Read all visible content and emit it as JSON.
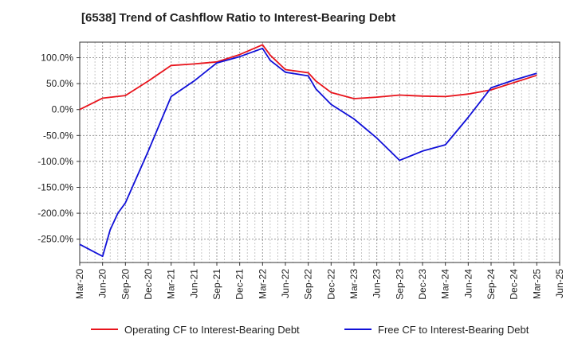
{
  "chart_data": {
    "type": "line",
    "title": "[6538]  Trend of Cashflow Ratio to Interest-Bearing Debt",
    "xlabel": "",
    "ylabel": "",
    "x_ticks": [
      "Mar-20",
      "Jun-20",
      "Sep-20",
      "Dec-20",
      "Mar-21",
      "Jun-21",
      "Sep-21",
      "Dec-21",
      "Mar-22",
      "Jun-22",
      "Sep-22",
      "Dec-22",
      "Mar-23",
      "Jun-23",
      "Sep-23",
      "Dec-23",
      "Mar-24",
      "Jun-24",
      "Sep-24",
      "Dec-24",
      "Mar-25",
      "Jun-25"
    ],
    "y_ticks": [
      "100.0%",
      "50.0%",
      "0.0%",
      "-50.0%",
      "-100.0%",
      "-150.0%",
      "-200.0%",
      "-250.0%"
    ],
    "y_tick_values": [
      100,
      50,
      0,
      -50,
      -100,
      -150,
      -200,
      -250
    ],
    "ylim": [
      -295,
      130
    ],
    "xlim": [
      "Mar-20",
      "Jun-25"
    ],
    "grid": true,
    "legend_position": "bottom",
    "series": [
      {
        "name": "Operating CF to Interest-Bearing Debt",
        "color": "#e8141c",
        "points": [
          [
            "Mar-20",
            0
          ],
          [
            "Jun-20",
            22
          ],
          [
            "Sep-20",
            27
          ],
          [
            "Dec-20",
            55
          ],
          [
            "Mar-21",
            85
          ],
          [
            "Jun-21",
            88
          ],
          [
            "Sep-21",
            92
          ],
          [
            "Dec-21",
            106
          ],
          [
            "Mar-22",
            125
          ],
          [
            "Apr-22",
            105
          ],
          [
            "Jun-22",
            77
          ],
          [
            "Sep-22",
            71
          ],
          [
            "Oct-22",
            55
          ],
          [
            "Dec-22",
            33
          ],
          [
            "Mar-23",
            21
          ],
          [
            "Jun-23",
            24
          ],
          [
            "Sep-23",
            28
          ],
          [
            "Dec-23",
            26
          ],
          [
            "Mar-24",
            25
          ],
          [
            "Jun-24",
            30
          ],
          [
            "Sep-24",
            38
          ],
          [
            "Dec-24",
            52
          ],
          [
            "Mar-25",
            66
          ]
        ]
      },
      {
        "name": "Free CF to Interest-Bearing Debt",
        "color": "#1010d8",
        "points": [
          [
            "Mar-20",
            -260
          ],
          [
            "Jun-20",
            -283
          ],
          [
            "Jul-20",
            -232
          ],
          [
            "Aug-20",
            -200
          ],
          [
            "Sep-20",
            -180
          ],
          [
            "Dec-20",
            -80
          ],
          [
            "Mar-21",
            25
          ],
          [
            "Jun-21",
            55
          ],
          [
            "Sep-21",
            90
          ],
          [
            "Dec-21",
            102
          ],
          [
            "Mar-22",
            118
          ],
          [
            "Apr-22",
            95
          ],
          [
            "Jun-22",
            72
          ],
          [
            "Sep-22",
            65
          ],
          [
            "Oct-22",
            40
          ],
          [
            "Dec-22",
            10
          ],
          [
            "Mar-23",
            -18
          ],
          [
            "Jun-23",
            -55
          ],
          [
            "Sep-23",
            -98
          ],
          [
            "Dec-23",
            -80
          ],
          [
            "Mar-24",
            -68
          ],
          [
            "Jun-24",
            -15
          ],
          [
            "Sep-24",
            42
          ],
          [
            "Dec-24",
            57
          ],
          [
            "Mar-25",
            70
          ]
        ]
      }
    ]
  }
}
